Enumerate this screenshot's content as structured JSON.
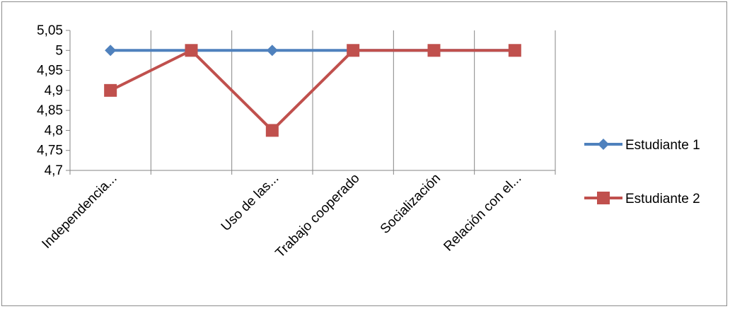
{
  "chart_data": {
    "type": "line",
    "categories": [
      "Independencia...",
      "",
      "Uso de las...",
      "Trabajo cooperado",
      "Socialización",
      "Relación con el..."
    ],
    "series": [
      {
        "name": "Estudiante 1",
        "values": [
          5,
          5,
          5,
          5,
          5,
          5
        ],
        "color": "#4f81bd",
        "marker": "diamond"
      },
      {
        "name": "Estudiante 2",
        "values": [
          4.9,
          5,
          4.8,
          5,
          5,
          5
        ],
        "color": "#c0504d",
        "marker": "square"
      }
    ],
    "ylim": [
      4.7,
      5.05
    ],
    "yticks": [
      "4,7",
      "4,75",
      "4,8",
      "4,85",
      "4,9",
      "4,95",
      "5",
      "5,05"
    ],
    "grid": "vertical category lines",
    "legend": "right"
  }
}
